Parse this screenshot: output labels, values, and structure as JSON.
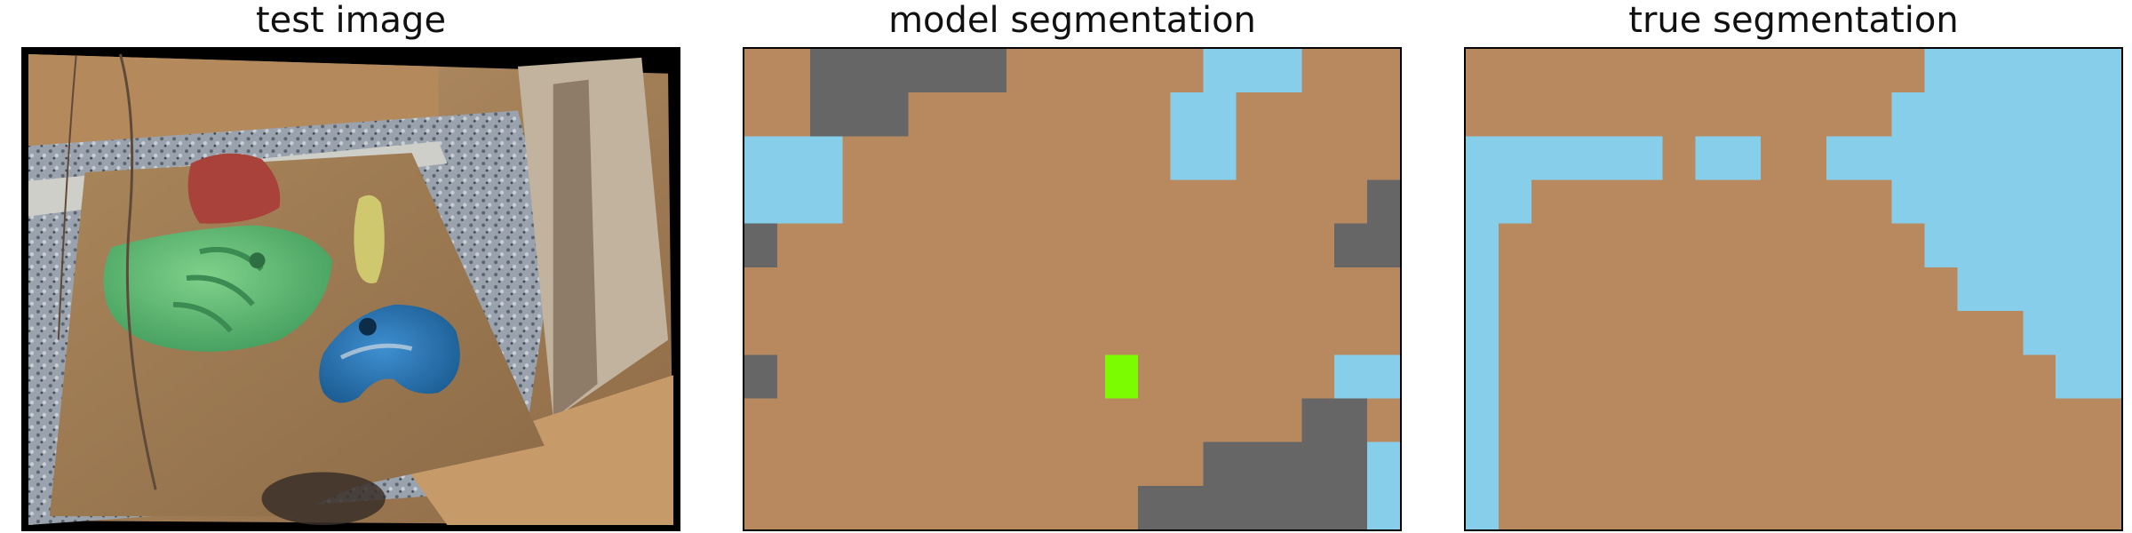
{
  "panels": {
    "test_image": {
      "title": "test image"
    },
    "model_segmentation": {
      "title": "model segmentation"
    },
    "true_segmentation": {
      "title": "true segmentation"
    }
  },
  "colors": {
    "board": "#B8895F",
    "sky": "#87CEEB",
    "dark": "#666666",
    "green": "#7CFC00"
  },
  "grid": {
    "rows": 11,
    "cols": 20
  },
  "model_mask": [
    "BBDDDDDDBBBBBBSSSBBB",
    "BBDDDBBBBBBBBSSBBBBB",
    "SSSBBBBBBBBBBSSBBBBB",
    "SSSBBBBBBBBBBBBBBBBD",
    "DBBBBBBBBBBBBBBBBBDD",
    "BBBBBBBBBBBBBBBBBBBB",
    "BBBBBBBBBBBBBBBBBBBB",
    "DBBBBBBBBBBGBBBBBBSS",
    "BBBBBBBBBBBBBBBBBDDB",
    "BBBBBBBBBBBBBBDDDDDS",
    "BBBBBBBBBBBBDDDDDDDS"
  ],
  "true_mask": [
    "BBBBBBBBBBBBBBSSSSSS",
    "BBBBBBBBBBBBBSSSSSSS",
    "SSSSSSBSSBBSSSSSSSSS",
    "SSBBBBBBBBBBBSSSSSSS",
    "SBBBBBBBBBBBBBSSSSSS",
    "SBBBBBBBBBBBBBBSSSSS",
    "SBBBBBBBBBBBBBBBBSSS",
    "SBBBBBBBBBBBBBBBBBSS",
    "SBBBBBBBBBBBBBBBBBBB",
    "SBBBBBBBBBBBBBBBBBBB",
    "SBBBBBBBBBBBBBBBBBBB"
  ]
}
